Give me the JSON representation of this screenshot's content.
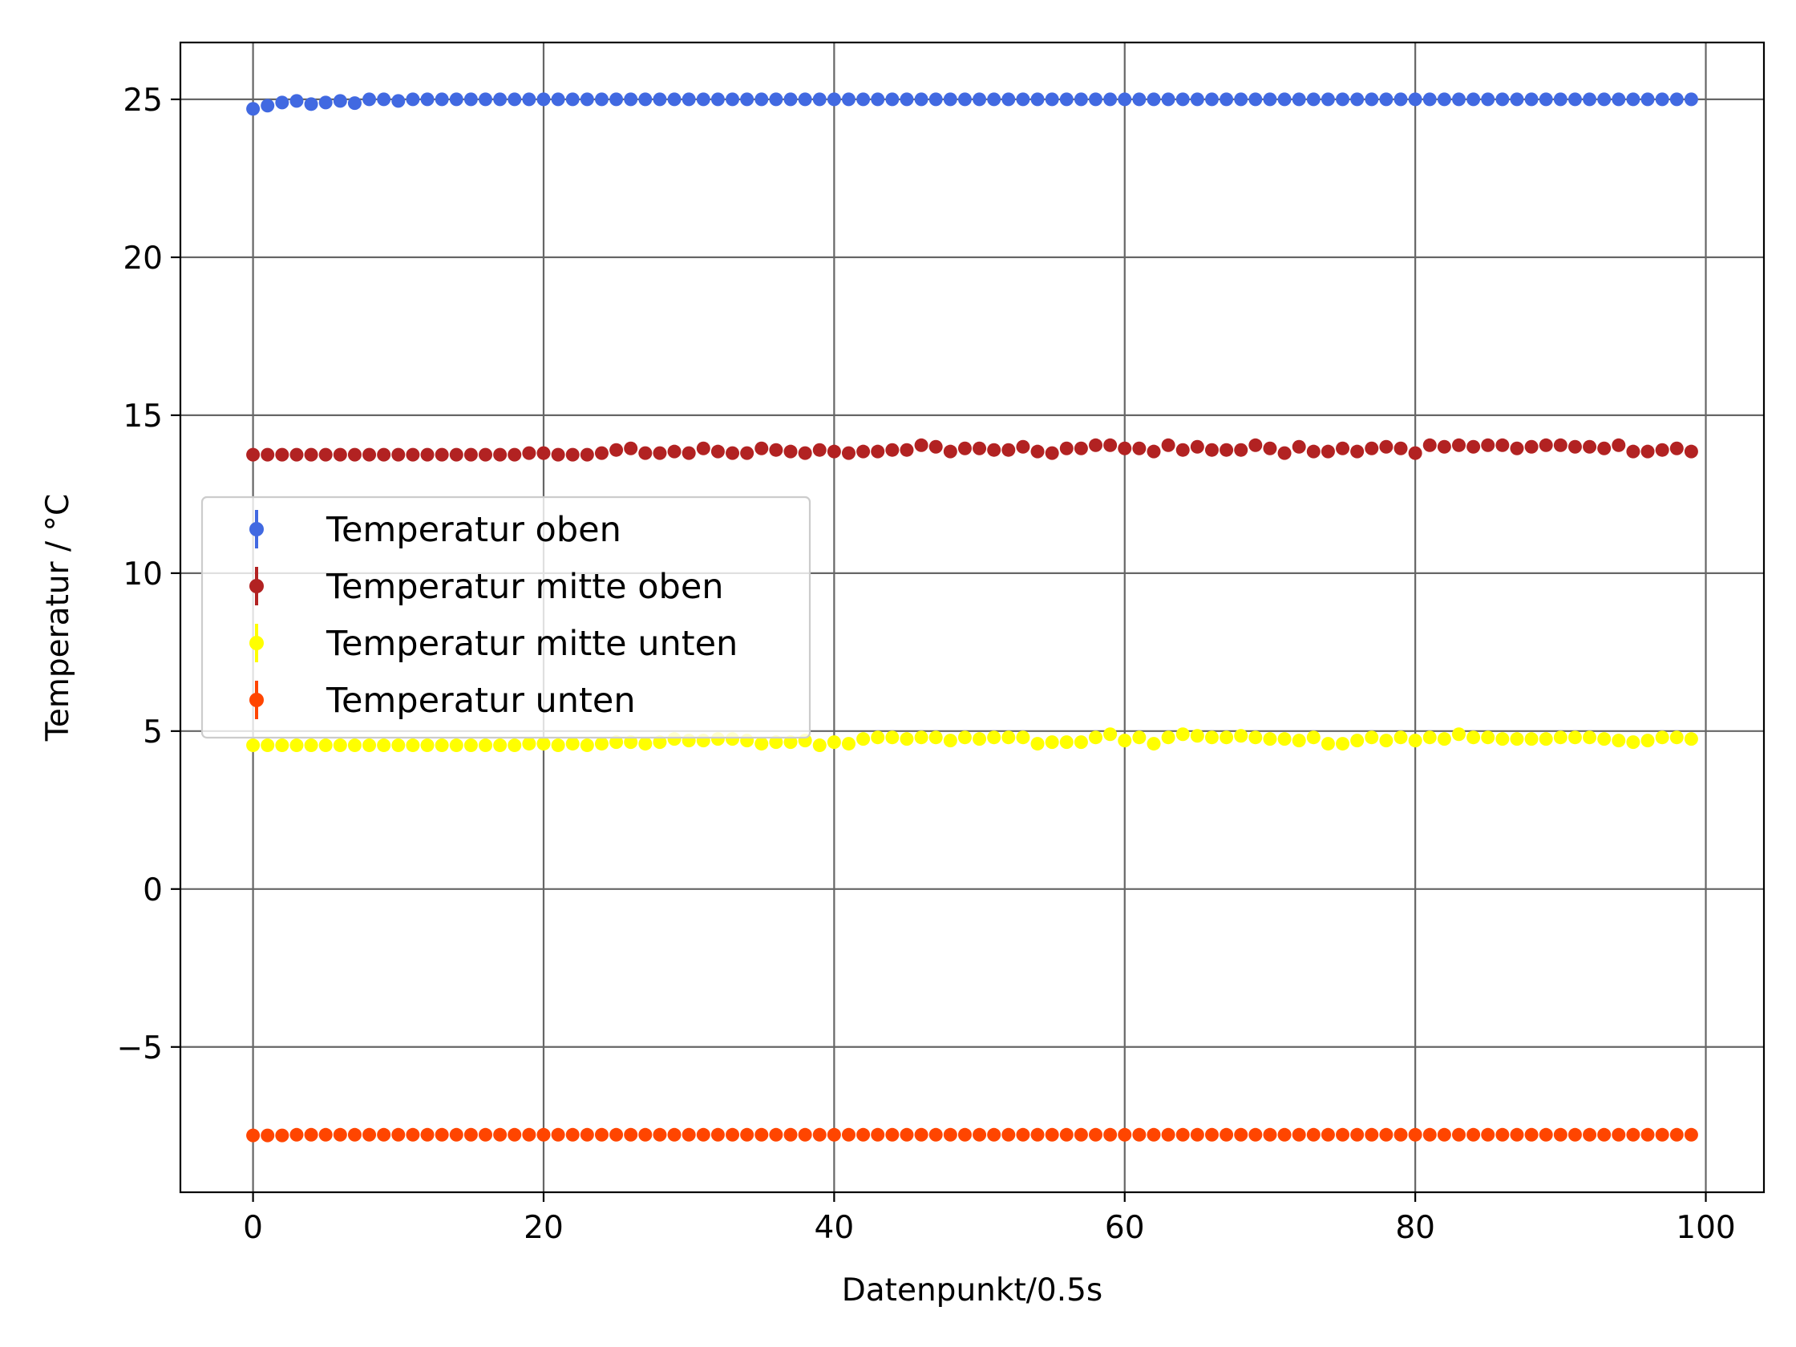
{
  "chart_data": {
    "type": "scatter",
    "title": "",
    "xlabel": "Datenpunkt/0.5s",
    "ylabel": "Temperatur / °C",
    "xlim": [
      -5,
      104
    ],
    "ylim": [
      -9.6,
      26.8
    ],
    "xticks": [
      0,
      20,
      40,
      60,
      80,
      100
    ],
    "yticks": [
      -5,
      0,
      5,
      10,
      15,
      20,
      25
    ],
    "xtick_labels": [
      "0",
      "20",
      "40",
      "60",
      "80",
      "100"
    ],
    "ytick_labels": [
      "−5",
      "0",
      "5",
      "10",
      "15",
      "20",
      "25"
    ],
    "grid": true,
    "legend_position": "center-left",
    "series": [
      {
        "name": "Temperatur oben",
        "color": "#4169e1",
        "x_start": 0,
        "x_step": 1,
        "values": [
          24.7,
          24.8,
          24.9,
          24.95,
          24.85,
          24.9,
          24.95,
          24.88,
          25.0,
          25.0,
          24.95,
          25.0,
          25.0,
          25.0,
          25.0,
          25.0,
          25.0,
          25.0,
          25.0,
          25.0,
          25.0,
          25.0,
          25.0,
          25.0,
          25.0,
          25.0,
          25.0,
          25.0,
          25.0,
          25.0,
          25.0,
          25.0,
          25.0,
          25.0,
          25.0,
          25.0,
          25.0,
          25.0,
          25.0,
          25.0,
          25.0,
          25.0,
          25.0,
          25.0,
          25.0,
          25.0,
          25.0,
          25.0,
          25.0,
          25.0,
          25.0,
          25.0,
          25.0,
          25.0,
          25.0,
          25.0,
          25.0,
          25.0,
          25.0,
          25.0,
          25.0,
          25.0,
          25.0,
          25.0,
          25.0,
          25.0,
          25.0,
          25.0,
          25.0,
          25.0,
          25.0,
          25.0,
          25.0,
          25.0,
          25.0,
          25.0,
          25.0,
          25.0,
          25.0,
          25.0,
          25.0,
          25.0,
          25.0,
          25.0,
          25.0,
          25.0,
          25.0,
          25.0,
          25.0,
          25.0,
          25.0,
          25.0,
          25.0,
          25.0,
          25.0,
          25.0,
          25.0,
          25.0,
          25.0,
          25.0
        ]
      },
      {
        "name": "Temperatur mitte oben",
        "color": "#b22222",
        "x_start": 0,
        "x_step": 1,
        "values": [
          13.75,
          13.75,
          13.75,
          13.75,
          13.75,
          13.75,
          13.75,
          13.75,
          13.75,
          13.75,
          13.75,
          13.75,
          13.75,
          13.75,
          13.75,
          13.75,
          13.75,
          13.75,
          13.75,
          13.8,
          13.8,
          13.75,
          13.75,
          13.75,
          13.8,
          13.9,
          13.95,
          13.8,
          13.8,
          13.85,
          13.8,
          13.95,
          13.85,
          13.8,
          13.8,
          13.95,
          13.9,
          13.85,
          13.8,
          13.9,
          13.85,
          13.8,
          13.85,
          13.85,
          13.9,
          13.9,
          14.05,
          14.0,
          13.85,
          13.95,
          13.95,
          13.9,
          13.9,
          14.0,
          13.85,
          13.8,
          13.95,
          13.95,
          14.05,
          14.05,
          13.95,
          13.95,
          13.85,
          14.05,
          13.9,
          14.0,
          13.9,
          13.9,
          13.9,
          14.05,
          13.95,
          13.8,
          14.0,
          13.85,
          13.85,
          13.95,
          13.85,
          13.95,
          14.0,
          13.95,
          13.8,
          14.05,
          14.0,
          14.05,
          14.0,
          14.05,
          14.05,
          13.95,
          14.0,
          14.05,
          14.05,
          14.0,
          14.0,
          13.95,
          14.05,
          13.85,
          13.85,
          13.9,
          13.95,
          13.85
        ]
      },
      {
        "name": "Temperatur mitte unten",
        "color": "#ffff00",
        "x_start": 0,
        "x_step": 1,
        "values": [
          4.55,
          4.55,
          4.55,
          4.55,
          4.55,
          4.55,
          4.55,
          4.55,
          4.55,
          4.55,
          4.55,
          4.55,
          4.55,
          4.55,
          4.55,
          4.55,
          4.55,
          4.55,
          4.55,
          4.6,
          4.6,
          4.55,
          4.6,
          4.55,
          4.6,
          4.65,
          4.65,
          4.6,
          4.65,
          4.75,
          4.7,
          4.7,
          4.75,
          4.75,
          4.7,
          4.6,
          4.65,
          4.65,
          4.7,
          4.55,
          4.65,
          4.6,
          4.75,
          4.8,
          4.8,
          4.75,
          4.8,
          4.8,
          4.7,
          4.8,
          4.75,
          4.8,
          4.8,
          4.8,
          4.6,
          4.65,
          4.65,
          4.65,
          4.8,
          4.9,
          4.7,
          4.8,
          4.6,
          4.8,
          4.9,
          4.85,
          4.8,
          4.8,
          4.85,
          4.8,
          4.75,
          4.75,
          4.7,
          4.8,
          4.6,
          4.6,
          4.7,
          4.8,
          4.7,
          4.8,
          4.7,
          4.8,
          4.75,
          4.9,
          4.8,
          4.8,
          4.75,
          4.75,
          4.75,
          4.75,
          4.8,
          4.8,
          4.8,
          4.75,
          4.7,
          4.65,
          4.7,
          4.8,
          4.8,
          4.75
        ]
      },
      {
        "name": "Temperatur unten",
        "color": "#ff4500",
        "x_start": 0,
        "x_step": 1,
        "values": [
          -7.8,
          -7.8,
          -7.8,
          -7.78,
          -7.78,
          -7.78,
          -7.78,
          -7.78,
          -7.78,
          -7.78,
          -7.78,
          -7.78,
          -7.78,
          -7.78,
          -7.78,
          -7.78,
          -7.78,
          -7.78,
          -7.78,
          -7.78,
          -7.78,
          -7.78,
          -7.78,
          -7.78,
          -7.78,
          -7.78,
          -7.78,
          -7.78,
          -7.78,
          -7.78,
          -7.78,
          -7.78,
          -7.78,
          -7.78,
          -7.78,
          -7.78,
          -7.78,
          -7.78,
          -7.78,
          -7.78,
          -7.78,
          -7.78,
          -7.78,
          -7.78,
          -7.78,
          -7.78,
          -7.78,
          -7.78,
          -7.78,
          -7.78,
          -7.78,
          -7.78,
          -7.78,
          -7.78,
          -7.78,
          -7.78,
          -7.78,
          -7.78,
          -7.78,
          -7.78,
          -7.78,
          -7.78,
          -7.78,
          -7.78,
          -7.78,
          -7.78,
          -7.78,
          -7.78,
          -7.78,
          -7.78,
          -7.78,
          -7.78,
          -7.78,
          -7.78,
          -7.78,
          -7.78,
          -7.78,
          -7.78,
          -7.78,
          -7.78,
          -7.78,
          -7.78,
          -7.78,
          -7.78,
          -7.78,
          -7.78,
          -7.78,
          -7.78,
          -7.78,
          -7.78,
          -7.78,
          -7.78,
          -7.78,
          -7.78,
          -7.78,
          -7.78,
          -7.78,
          -7.78,
          -7.78,
          -7.78
        ]
      }
    ]
  }
}
